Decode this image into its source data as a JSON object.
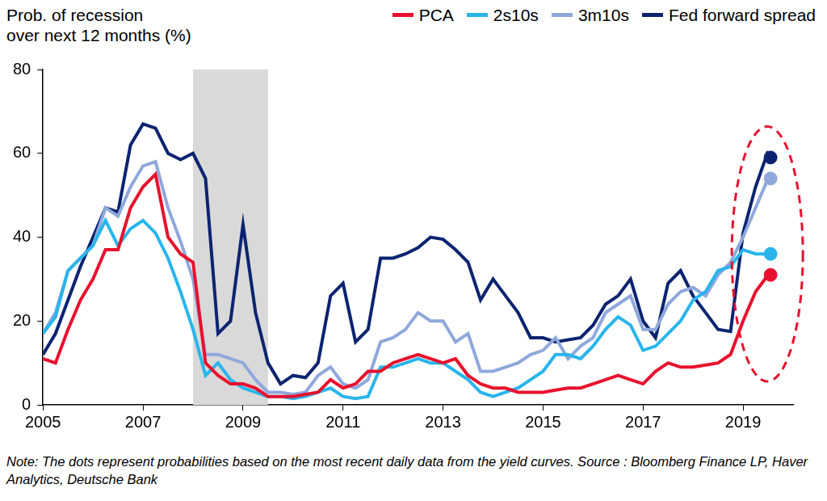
{
  "chart_data": {
    "type": "line",
    "title": "Prob. of recession\nover next 12 months (%)",
    "note": "Note: The dots represent probabilities based on the most recent daily data from the yield curves. Source : Bloomberg Finance LP, Haver Analytics, Deutsche Bank",
    "x": [
      2005,
      2005.25,
      2005.5,
      2005.75,
      2006,
      2006.25,
      2006.5,
      2006.75,
      2007,
      2007.25,
      2007.5,
      2007.75,
      2008,
      2008.25,
      2008.5,
      2008.75,
      2009,
      2009.25,
      2009.5,
      2009.75,
      2010,
      2010.25,
      2010.5,
      2010.75,
      2011,
      2011.25,
      2011.5,
      2011.75,
      2012,
      2012.25,
      2012.5,
      2012.75,
      2013,
      2013.25,
      2013.5,
      2013.75,
      2014,
      2014.25,
      2014.5,
      2014.75,
      2015,
      2015.25,
      2015.5,
      2015.75,
      2016,
      2016.25,
      2016.5,
      2016.75,
      2017,
      2017.25,
      2017.5,
      2017.75,
      2018,
      2018.25,
      2018.5,
      2018.75,
      2019,
      2019.25,
      2019.5
    ],
    "series": [
      {
        "name": "PCA",
        "color": "#e8112d",
        "latest": 31,
        "values": [
          11,
          10,
          18,
          25,
          30,
          37,
          37,
          47,
          52,
          55,
          40,
          36,
          34,
          10,
          7,
          5,
          5,
          4,
          2,
          2,
          2,
          2.5,
          3,
          6,
          4,
          5,
          8,
          8,
          10,
          11,
          12,
          11,
          10,
          11,
          7,
          5,
          4,
          4,
          3,
          3,
          3,
          3.5,
          4,
          4,
          5,
          6,
          7,
          6,
          5,
          8,
          10,
          9,
          9,
          9.5,
          10,
          12,
          20,
          27,
          31
        ]
      },
      {
        "name": "2s10s",
        "color": "#29b5ec",
        "latest": 36,
        "values": [
          17,
          21,
          32,
          35,
          38,
          44,
          38,
          42,
          44,
          41,
          35,
          27,
          18,
          7,
          10,
          6,
          4,
          3,
          2,
          2,
          1.5,
          2,
          3,
          4,
          2,
          1.5,
          2,
          9,
          9,
          10,
          11,
          10,
          10,
          8,
          6,
          3,
          2,
          3,
          4,
          6,
          8,
          12,
          12,
          11,
          14,
          18,
          21,
          19,
          13,
          14,
          17,
          20,
          25,
          27,
          32,
          33,
          37,
          36,
          36
        ]
      },
      {
        "name": "3m10s",
        "color": "#8fa8dc",
        "latest": 54,
        "values": [
          17,
          22,
          32,
          35,
          38,
          47,
          45,
          52,
          57,
          58,
          47,
          39,
          30,
          12,
          12,
          11,
          10,
          6,
          3,
          3,
          2.5,
          3,
          7,
          9,
          5,
          4,
          6,
          15,
          16,
          18,
          22,
          20,
          20,
          15,
          17,
          8,
          8,
          9,
          10,
          12,
          13,
          16,
          11,
          14,
          16,
          22,
          24,
          26,
          18,
          18,
          24,
          27,
          28,
          26,
          31,
          34,
          40,
          47,
          54
        ]
      },
      {
        "name": "Fed forward spread",
        "color": "#0c2470",
        "latest": 59,
        "values": [
          12,
          17,
          25,
          33,
          40,
          47,
          46,
          62,
          67,
          66,
          60,
          58.5,
          60,
          54,
          17,
          20,
          43,
          22,
          10,
          5,
          7,
          6.5,
          10,
          26,
          29,
          15,
          18,
          35,
          35,
          36,
          37.5,
          40,
          39.5,
          37,
          34,
          25,
          30,
          26,
          22,
          16,
          16,
          15,
          15.5,
          16,
          19,
          24,
          26,
          30,
          20,
          16,
          29,
          32,
          26,
          22,
          18,
          17.5,
          41,
          52,
          60.5
        ]
      }
    ],
    "latest_x": 2019.55,
    "shaded_span": [
      2008,
      2009.5
    ],
    "xlim": [
      2005,
      2020
    ],
    "xticks": [
      2005,
      2007,
      2009,
      2011,
      2013,
      2015,
      2017,
      2019
    ],
    "ylim": [
      0,
      80
    ],
    "yticks": [
      0,
      20,
      40,
      60,
      80
    ],
    "grid": false
  }
}
